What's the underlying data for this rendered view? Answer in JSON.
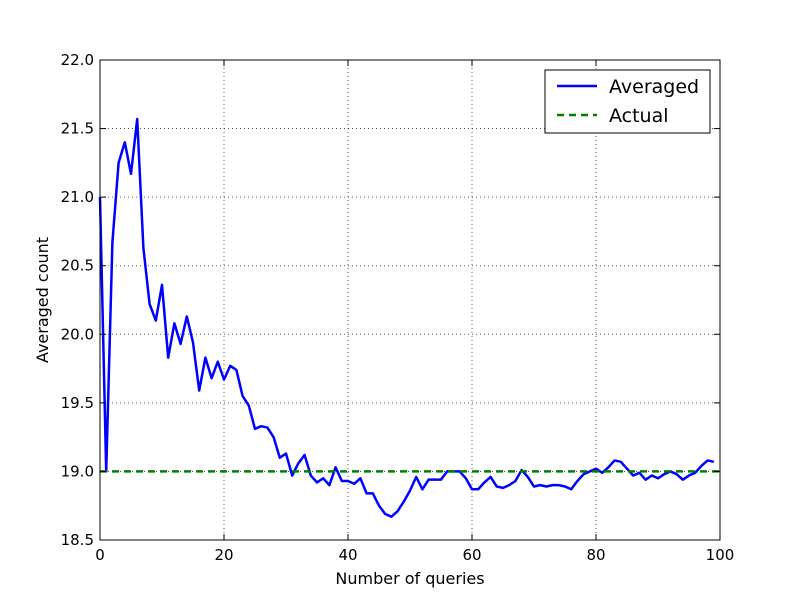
{
  "chart_data": {
    "type": "line",
    "xlabel": "Number of queries",
    "ylabel": "Averaged count",
    "xlim": [
      0,
      100
    ],
    "ylim": [
      18.5,
      22.0
    ],
    "grid": true,
    "legend_position": "top-right",
    "x_ticks": [
      0,
      20,
      40,
      60,
      80,
      100
    ],
    "x_tick_labels": [
      "0",
      "20",
      "40",
      "60",
      "80",
      "100"
    ],
    "y_ticks": [
      18.5,
      19.0,
      19.5,
      20.0,
      20.5,
      21.0,
      21.5,
      22.0
    ],
    "y_tick_labels": [
      "18.5",
      "19.0",
      "19.5",
      "20.0",
      "20.5",
      "21.0",
      "21.5",
      "22.0"
    ],
    "series": [
      {
        "name": "Averaged",
        "color": "#0000ff",
        "style": "solid",
        "x": [
          0,
          1,
          2,
          3,
          4,
          5,
          6,
          7,
          8,
          9,
          10,
          11,
          12,
          13,
          14,
          15,
          16,
          17,
          18,
          19,
          20,
          21,
          22,
          23,
          24,
          25,
          26,
          27,
          28,
          29,
          30,
          31,
          32,
          33,
          34,
          35,
          36,
          37,
          38,
          39,
          40,
          41,
          42,
          43,
          44,
          45,
          46,
          47,
          48,
          49,
          50,
          51,
          52,
          53,
          54,
          55,
          56,
          57,
          58,
          59,
          60,
          61,
          62,
          63,
          64,
          65,
          66,
          67,
          68,
          69,
          70,
          71,
          72,
          73,
          74,
          75,
          76,
          77,
          78,
          79,
          80,
          81,
          82,
          83,
          84,
          85,
          86,
          87,
          88,
          89,
          90,
          91,
          92,
          93,
          94,
          95,
          96,
          97,
          98,
          99
        ],
        "values": [
          21.0,
          19.0,
          20.67,
          21.25,
          21.4,
          21.17,
          21.57,
          20.63,
          20.22,
          20.1,
          20.36,
          19.83,
          20.08,
          19.93,
          20.13,
          19.94,
          19.59,
          19.83,
          19.68,
          19.8,
          19.67,
          19.77,
          19.74,
          19.55,
          19.48,
          19.31,
          19.33,
          19.32,
          19.25,
          19.1,
          19.13,
          18.97,
          19.06,
          19.12,
          18.97,
          18.92,
          18.95,
          18.9,
          19.03,
          18.93,
          18.93,
          18.91,
          18.95,
          18.84,
          18.84,
          18.75,
          18.69,
          18.67,
          18.71,
          18.78,
          18.86,
          18.96,
          18.87,
          18.94,
          18.94,
          18.94,
          19.0,
          19.0,
          19.0,
          18.95,
          18.87,
          18.87,
          18.92,
          18.96,
          18.89,
          18.88,
          18.9,
          18.93,
          19.01,
          18.96,
          18.89,
          18.9,
          18.89,
          18.9,
          18.9,
          18.89,
          18.87,
          18.93,
          18.98,
          19.0,
          19.02,
          18.99,
          19.03,
          19.08,
          19.07,
          19.02,
          18.97,
          18.99,
          18.94,
          18.97,
          18.95,
          18.98,
          19.0,
          18.98,
          18.94,
          18.97,
          18.99,
          19.04,
          19.08,
          19.07
        ]
      },
      {
        "name": "Actual",
        "color": "#008000",
        "style": "dashed",
        "x": [
          0,
          100
        ],
        "values": [
          19.0,
          19.0
        ]
      }
    ]
  }
}
